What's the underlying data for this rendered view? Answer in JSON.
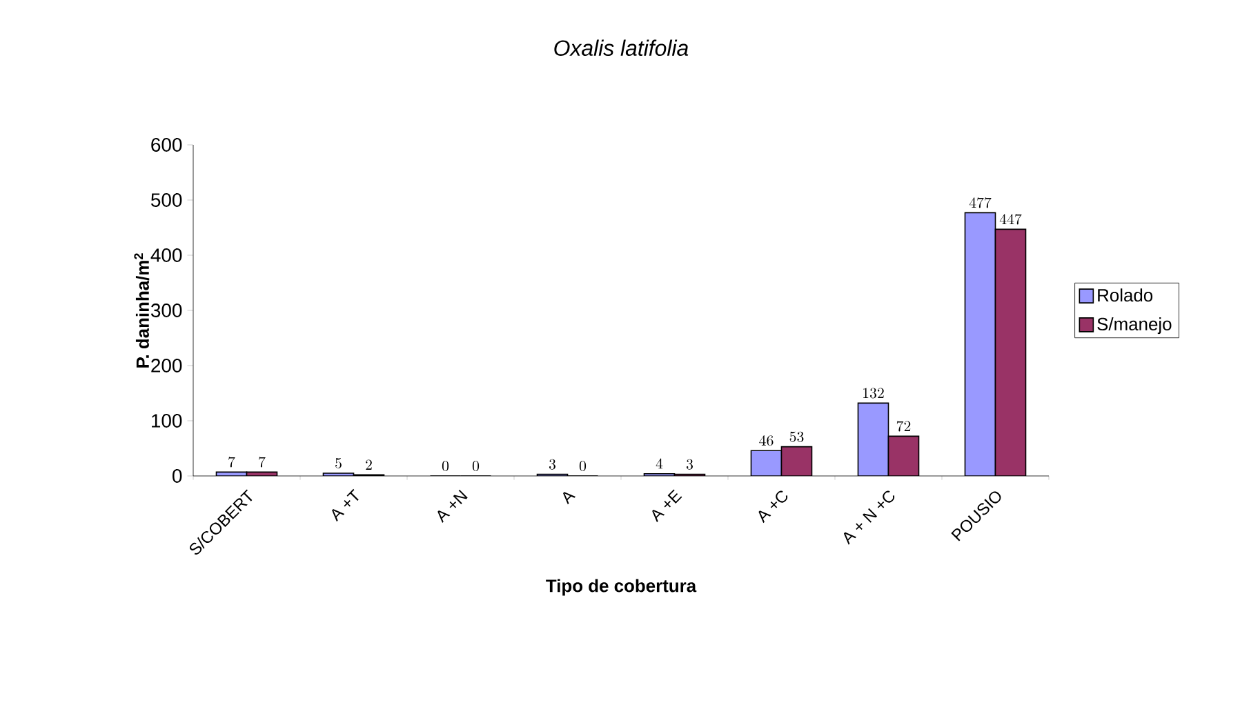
{
  "chart_data": {
    "type": "bar",
    "title": "Oxalis latifolia",
    "xlabel": "Tipo de cobertura",
    "ylabel": "P. daninha/m$^{2}$",
    "categories": [
      "S/COBERT",
      "A +T",
      "A +N",
      "A",
      "A +E",
      "A +C",
      "A + N +C",
      "POUSIO"
    ],
    "series": [
      {
        "name": "Rolado",
        "color": "#9999ff",
        "values": [
          7,
          5,
          0,
          3,
          4,
          46,
          132,
          477
        ]
      },
      {
        "name": "S/manejo",
        "color": "#993366",
        "values": [
          7,
          2,
          0,
          0,
          3,
          53,
          72,
          447
        ]
      }
    ],
    "ylim": [
      0,
      600
    ],
    "yticks": [
      0,
      100,
      200,
      300,
      400,
      500,
      600
    ],
    "data_labels": true,
    "legend": "right",
    "grid": false
  }
}
